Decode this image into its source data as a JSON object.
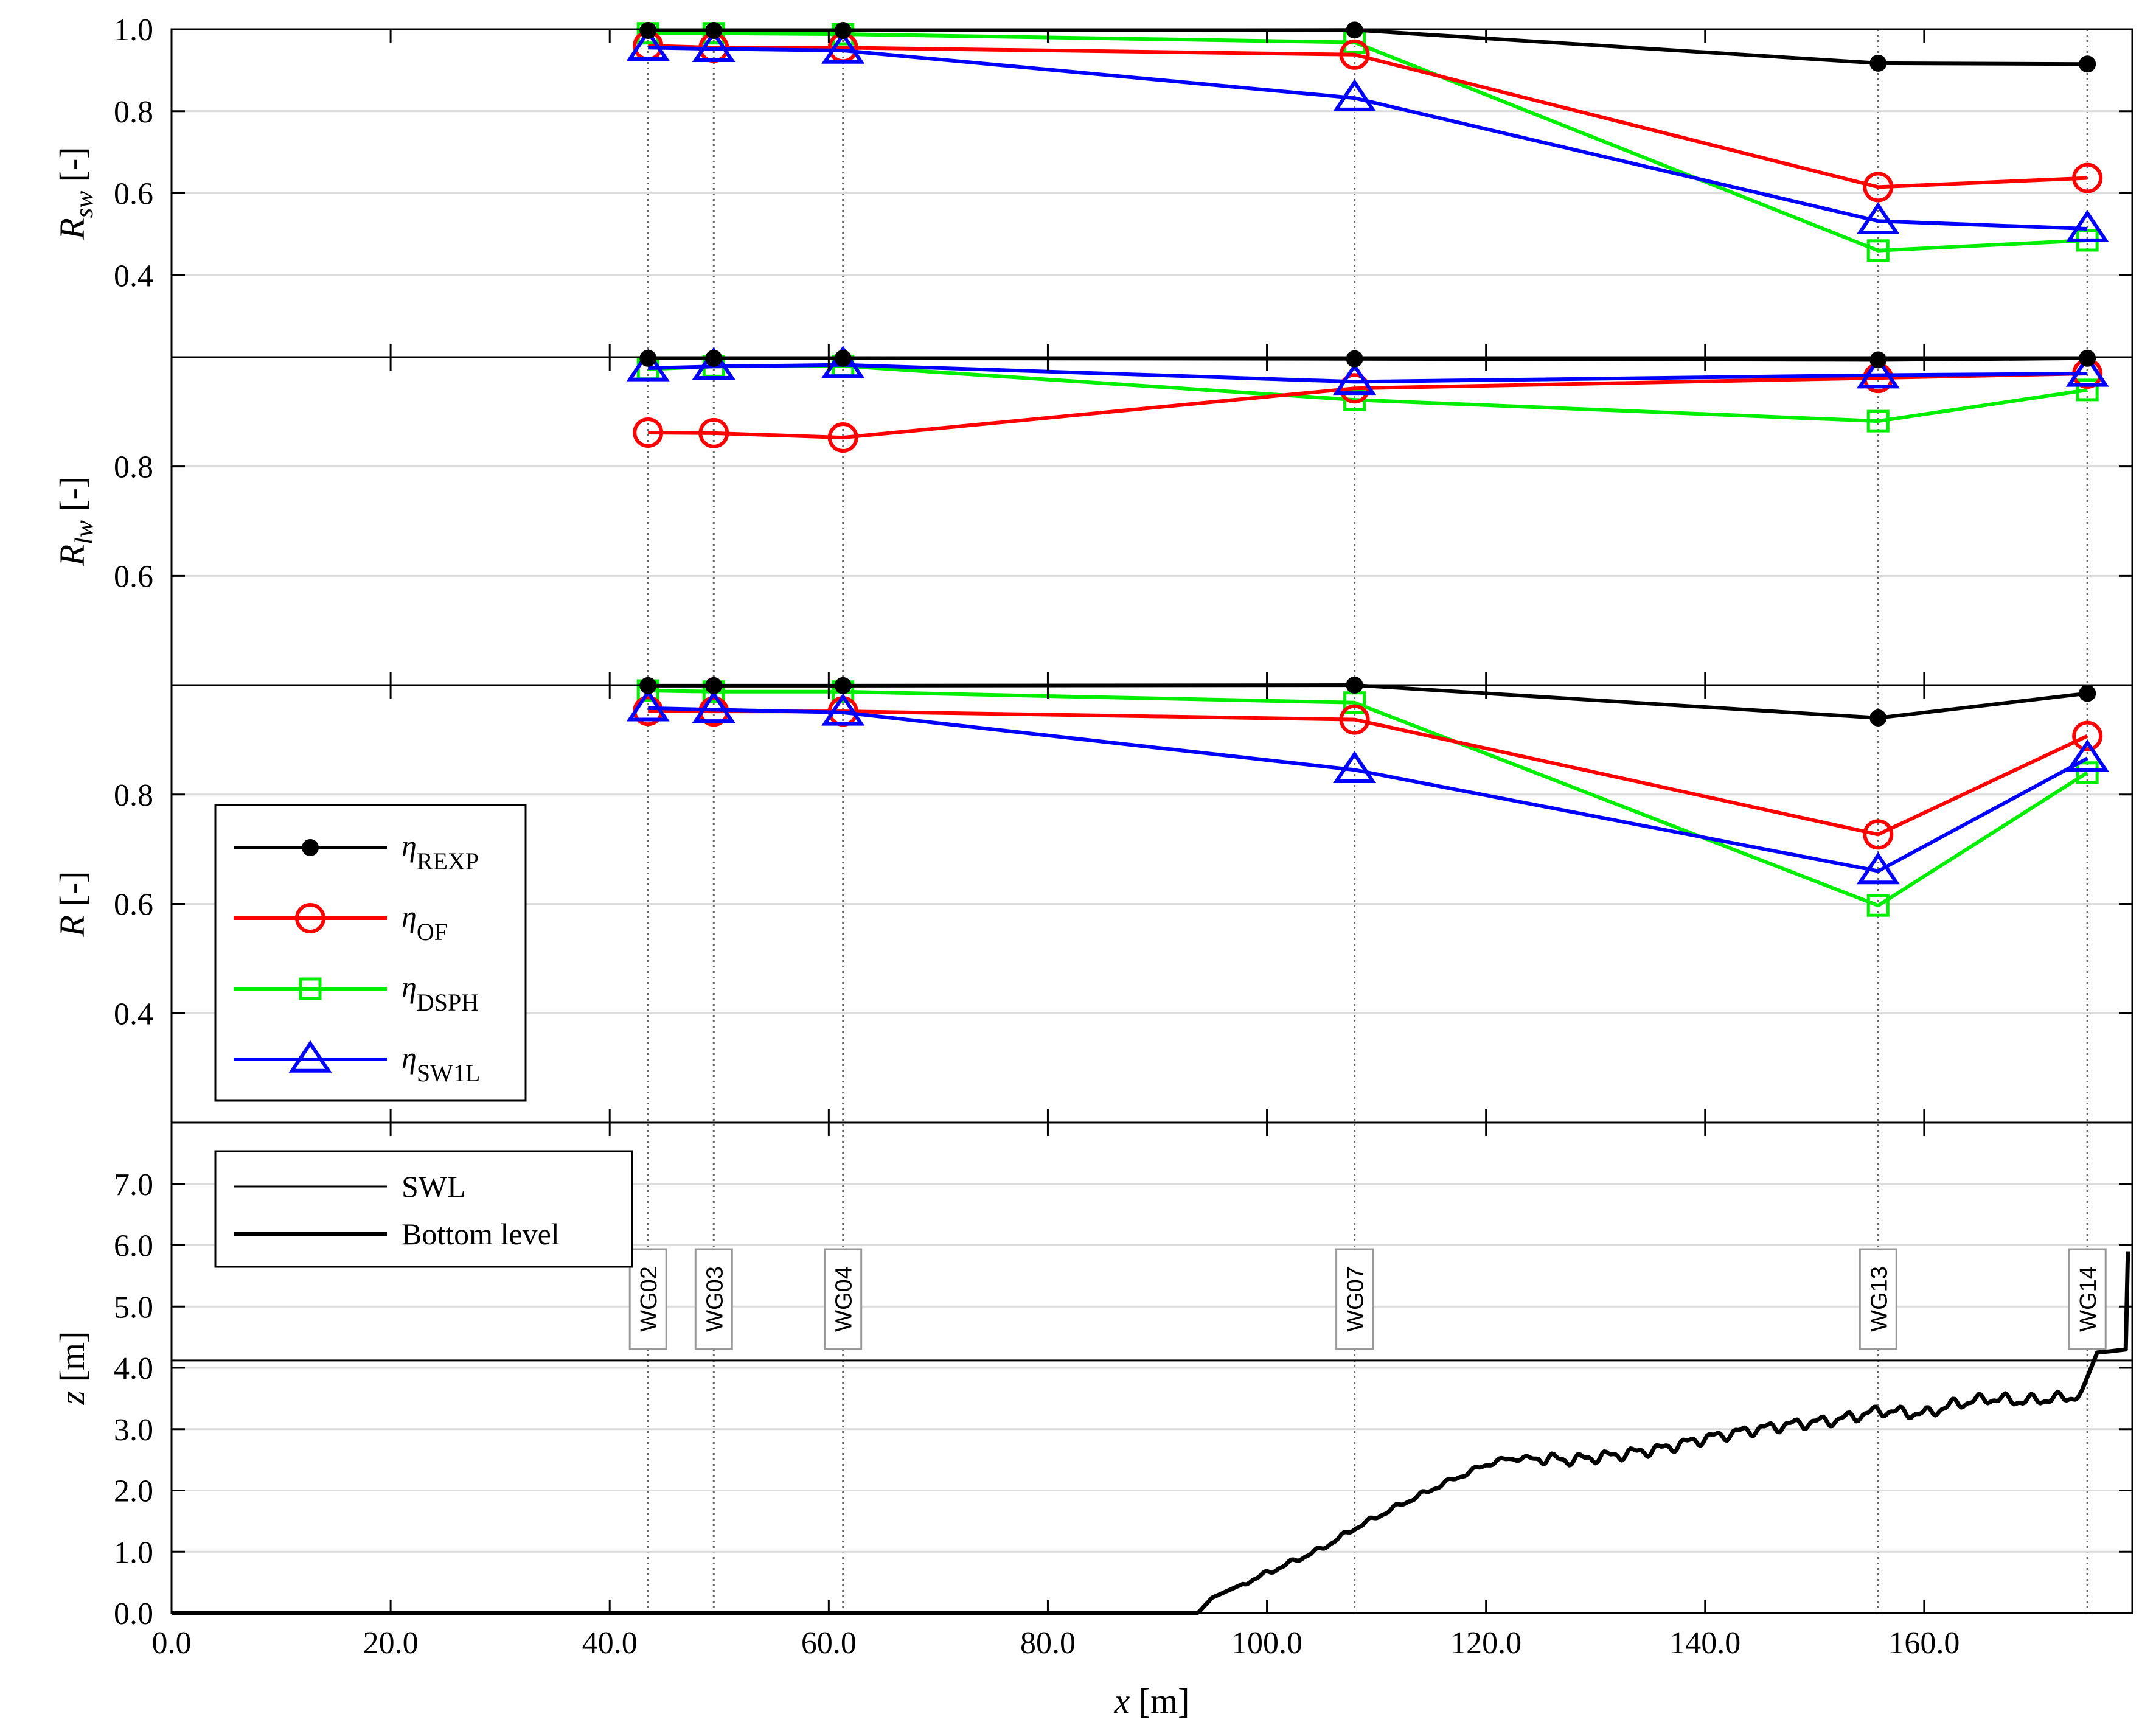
{
  "chart_data": {
    "type": "line",
    "x_axis": {
      "label": "x [m]",
      "label_italic": "x",
      "label_unit": "[m]",
      "xlim": [
        0,
        179
      ],
      "ticks": [
        0,
        20,
        40,
        60,
        80,
        100,
        120,
        140,
        160
      ],
      "tick_labels": [
        "0.0",
        "20.0",
        "40.0",
        "60.0",
        "80.0",
        "100.0",
        "120.0",
        "140.0",
        "160.0"
      ]
    },
    "gauges": [
      {
        "name": "WG02",
        "x": 43.5
      },
      {
        "name": "WG03",
        "x": 49.5
      },
      {
        "name": "WG04",
        "x": 61.3
      },
      {
        "name": "WG07",
        "x": 108.0
      },
      {
        "name": "WG13",
        "x": 155.8
      },
      {
        "name": "WG14",
        "x": 174.9
      }
    ],
    "legend_series": [
      {
        "key": "REXP",
        "symbol": "η",
        "subscript": "REXP",
        "color": "#000000",
        "marker": "dot"
      },
      {
        "key": "OF",
        "symbol": "η",
        "subscript": "OF",
        "color": "#ff0000",
        "marker": "circle"
      },
      {
        "key": "DSPH",
        "symbol": "η",
        "subscript": "DSPH",
        "color": "#00ee00",
        "marker": "square"
      },
      {
        "key": "SW1L",
        "symbol": "η",
        "subscript": "SW1L",
        "color": "#0000ff",
        "marker": "triangle"
      }
    ],
    "panels": [
      {
        "id": "Rsw",
        "ylabel": "R_sw [-]",
        "ylabel_main": "R",
        "ylabel_sub": "sw",
        "ylabel_unit": " [-]",
        "ylim": [
          0.2,
          1.0
        ],
        "yticks": [
          0.4,
          0.6,
          0.8,
          1.0
        ],
        "ytick_labels": [
          "0.4",
          "0.6",
          "0.8",
          "1.0"
        ],
        "series": [
          {
            "key": "REXP",
            "x": [
              43.5,
              49.5,
              61.3,
              108.0,
              155.8,
              174.9
            ],
            "values": [
              0.997,
              0.997,
              0.997,
              0.998,
              0.917,
              0.915
            ]
          },
          {
            "key": "OF",
            "x": [
              43.5,
              49.5,
              61.3,
              108.0,
              155.8,
              174.9
            ],
            "values": [
              0.96,
              0.955,
              0.955,
              0.938,
              0.615,
              0.637
            ]
          },
          {
            "key": "DSPH",
            "x": [
              43.5,
              49.5,
              61.3,
              108.0,
              155.8,
              174.9
            ],
            "values": [
              0.99,
              0.99,
              0.988,
              0.968,
              0.46,
              0.485
            ]
          },
          {
            "key": "SW1L",
            "x": [
              43.5,
              49.5,
              61.3,
              108.0,
              155.8,
              174.9
            ],
            "values": [
              0.955,
              0.952,
              0.948,
              0.832,
              0.532,
              0.513
            ]
          }
        ]
      },
      {
        "id": "Rlw",
        "ylabel": "R_lw [-]",
        "ylabel_main": "R",
        "ylabel_sub": "lw",
        "ylabel_unit": " [-]",
        "ylim": [
          0.4,
          1.0
        ],
        "yticks": [
          0.6,
          0.8
        ],
        "ytick_labels": [
          "0.6",
          "0.8"
        ],
        "series": [
          {
            "key": "REXP",
            "x": [
              43.5,
              49.5,
              61.3,
              108.0,
              155.8,
              174.9
            ],
            "values": [
              0.998,
              0.998,
              0.998,
              0.997,
              0.995,
              0.998
            ]
          },
          {
            "key": "OF",
            "x": [
              43.5,
              49.5,
              61.3,
              108.0,
              155.8,
              174.9
            ],
            "values": [
              0.862,
              0.861,
              0.853,
              0.943,
              0.962,
              0.97
            ]
          },
          {
            "key": "DSPH",
            "x": [
              43.5,
              49.5,
              61.3,
              108.0,
              155.8,
              174.9
            ],
            "values": [
              0.978,
              0.983,
              0.984,
              0.922,
              0.883,
              0.94
            ]
          },
          {
            "key": "SW1L",
            "x": [
              43.5,
              49.5,
              61.3,
              108.0,
              155.8,
              174.9
            ],
            "values": [
              0.98,
              0.983,
              0.986,
              0.955,
              0.967,
              0.97
            ]
          }
        ]
      },
      {
        "id": "R",
        "ylabel": "R [-]",
        "ylabel_main": "R",
        "ylabel_sub": "",
        "ylabel_unit": " [-]",
        "ylim": [
          0.2,
          1.0
        ],
        "yticks": [
          0.4,
          0.6,
          0.8
        ],
        "ytick_labels": [
          "0.4",
          "0.6",
          "0.8"
        ],
        "series": [
          {
            "key": "REXP",
            "x": [
              43.5,
              49.5,
              61.3,
              108.0,
              155.8,
              174.9
            ],
            "values": [
              0.999,
              0.999,
              0.999,
              1.0,
              0.94,
              0.985
            ]
          },
          {
            "key": "OF",
            "x": [
              43.5,
              49.5,
              61.3,
              108.0,
              155.8,
              174.9
            ],
            "values": [
              0.953,
              0.952,
              0.952,
              0.937,
              0.727,
              0.907
            ]
          },
          {
            "key": "DSPH",
            "x": [
              43.5,
              49.5,
              61.3,
              108.0,
              155.8,
              174.9
            ],
            "values": [
              0.99,
              0.988,
              0.988,
              0.968,
              0.597,
              0.84
            ]
          },
          {
            "key": "SW1L",
            "x": [
              43.5,
              49.5,
              61.3,
              108.0,
              155.8,
              174.9
            ],
            "values": [
              0.958,
              0.955,
              0.95,
              0.845,
              0.66,
              0.866
            ]
          }
        ]
      },
      {
        "id": "z",
        "ylabel": "z [m]",
        "ylabel_main": "z",
        "ylabel_sub": "",
        "ylabel_unit": " [m]",
        "ylim": [
          0,
          8
        ],
        "yticks": [
          0,
          1,
          2,
          3,
          4,
          5,
          6,
          7
        ],
        "ytick_labels": [
          "0.0",
          "1.0",
          "2.0",
          "3.0",
          "4.0",
          "5.0",
          "6.0",
          "7.0"
        ],
        "swl": 4.12,
        "bottom_profile": {
          "x": [
            0,
            93.7,
            95,
            100,
            105,
            108,
            112,
            116,
            120,
            122,
            125,
            128,
            132,
            136,
            140,
            144,
            148,
            152,
            156,
            160,
            163,
            166,
            169,
            172,
            174.5,
            175.8,
            177,
            178.4,
            178.6
          ],
          "z": [
            0,
            0,
            0.25,
            0.65,
            1.05,
            1.38,
            1.75,
            2.1,
            2.42,
            2.52,
            2.52,
            2.5,
            2.58,
            2.68,
            2.85,
            2.98,
            3.08,
            3.15,
            3.3,
            3.25,
            3.42,
            3.5,
            3.46,
            3.5,
            3.55,
            4.25,
            4.27,
            4.3,
            5.9
          ]
        },
        "legend": [
          {
            "label": "SWL",
            "style": "thin"
          },
          {
            "label": "Bottom level",
            "style": "thick"
          }
        ]
      }
    ]
  }
}
